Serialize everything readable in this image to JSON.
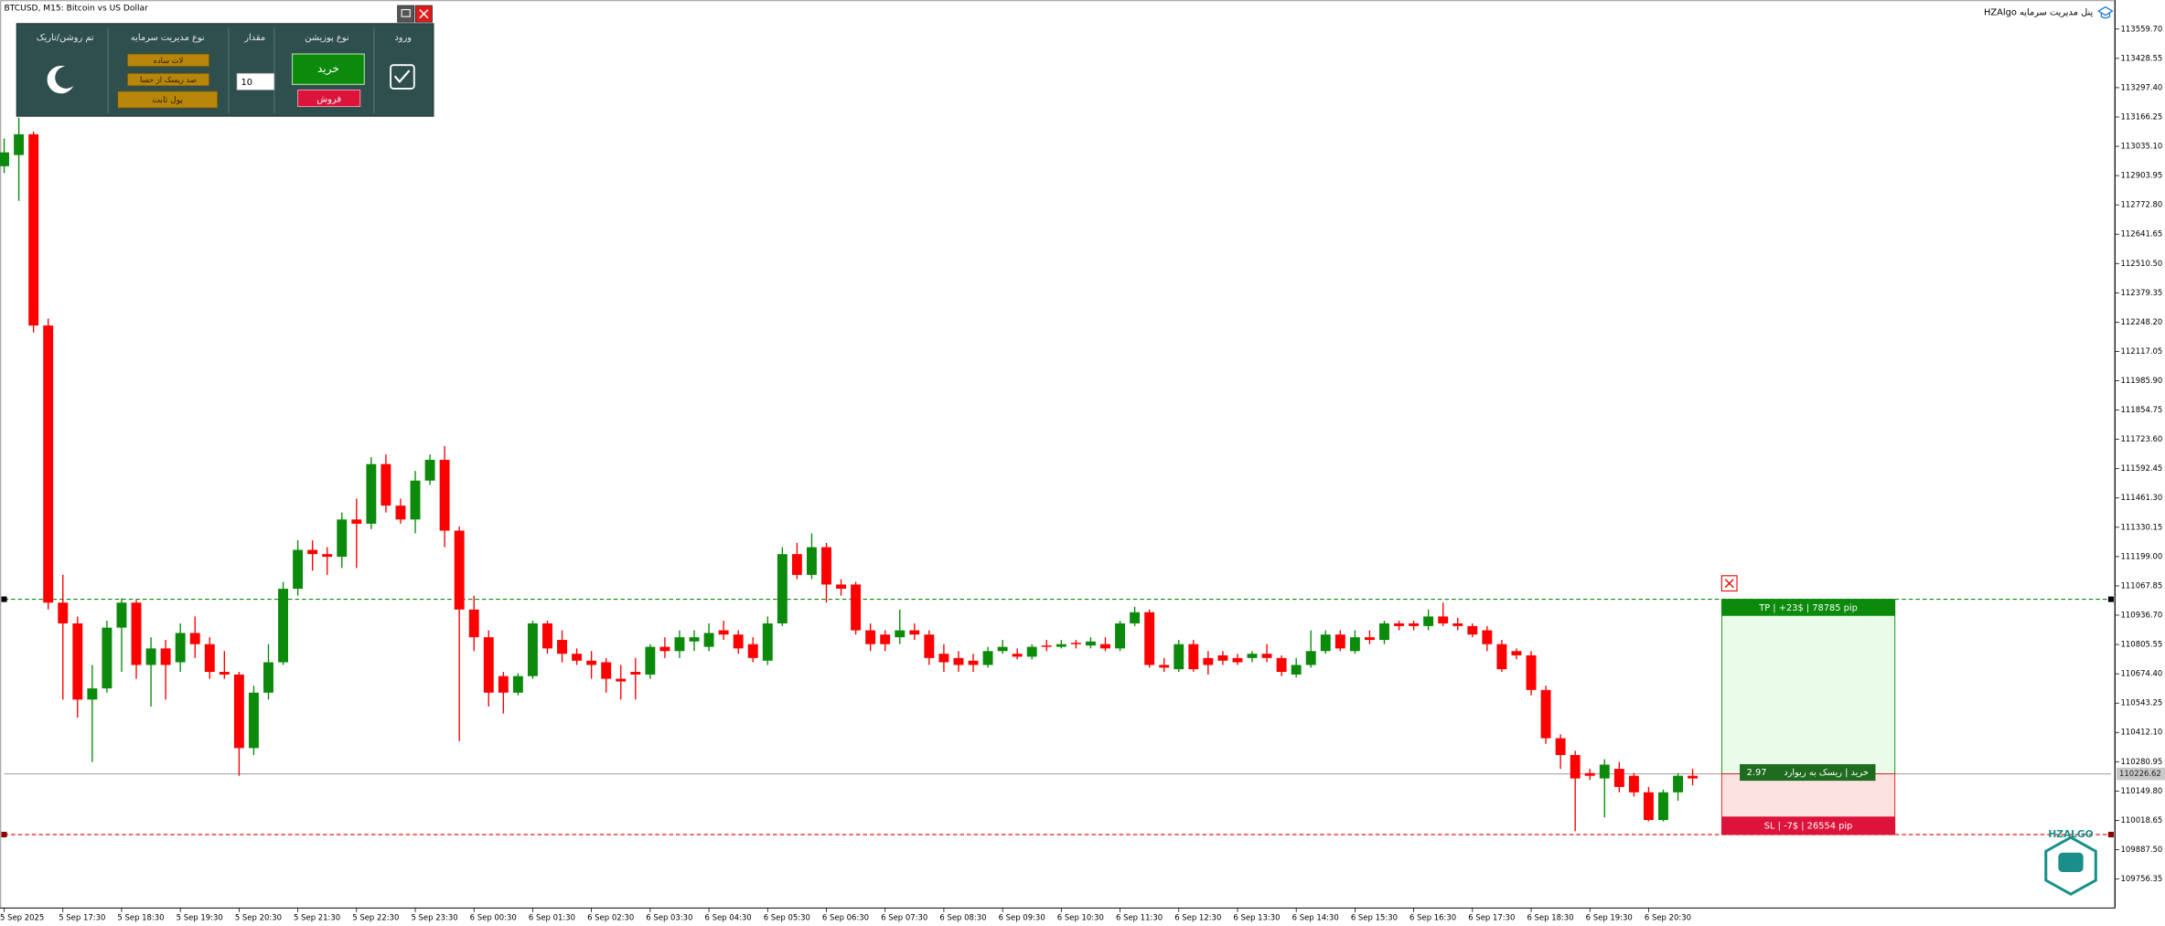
{
  "header": {
    "symbol": "BTCUSD, M15:  Bitcoin vs US Dollar",
    "app_title": "HZAlgo پنل مدیریت سرمایه"
  },
  "panel": {
    "headers": [
      "ورود",
      "نوع پوزیشن",
      "مقدار",
      "نوع مدیریت سرمایه",
      "تم روشن/تاریک"
    ],
    "buy": "خرید",
    "sell": "فروش",
    "amount": 10,
    "money_modes": [
      "لات ساده",
      "صد ریسک از حسا",
      "پول ثابت"
    ]
  },
  "trade_box": {
    "tp_label": "TP  |  +23$  |  78785 pip",
    "sl_label": "SL  |  -7$  |  26554 pip",
    "rr": 2.97,
    "rr_text": "خرید | ریسک به ریوارد"
  },
  "logo": "HZALGO",
  "chart_data": {
    "type": "candlestick",
    "categories": [
      "5 Sep 2025",
      null,
      null,
      null,
      "5 Sep 17:30",
      null,
      null,
      null,
      "5 Sep 18:30",
      null,
      null,
      null,
      "5 Sep 19:30",
      null,
      null,
      null,
      "5 Sep 20:30",
      null,
      null,
      null,
      "5 Sep 21:30",
      null,
      null,
      null,
      "5 Sep 22:30",
      null,
      null,
      null,
      "5 Sep 23:30",
      null,
      null,
      null,
      "6 Sep 00:30",
      null,
      null,
      null,
      "6 Sep 01:30",
      null,
      null,
      null,
      "6 Sep 02:30",
      null,
      null,
      null,
      "6 Sep 03:30",
      null,
      null,
      null,
      "6 Sep 04:30",
      null,
      null,
      null,
      "6 Sep 05:30",
      null,
      null,
      null,
      "6 Sep 06:30",
      null,
      null,
      null,
      "6 Sep 07:30",
      null,
      null,
      null,
      "6 Sep 08:30",
      null,
      null,
      null,
      "6 Sep 09:30",
      null,
      null,
      null,
      "6 Sep 10:30",
      null,
      null,
      null,
      "6 Sep 11:30",
      null,
      null,
      null,
      "6 Sep 12:30",
      null,
      null,
      null,
      "6 Sep 13:30",
      null,
      null,
      null,
      "6 Sep 14:30",
      null,
      null,
      null,
      "6 Sep 15:30",
      null,
      null,
      null,
      "6 Sep 16:30",
      null,
      null,
      null,
      "6 Sep 17:30",
      null,
      null,
      null,
      "6 Sep 18:30",
      null,
      null,
      null,
      "6 Sep 19:30",
      null,
      null,
      null,
      "6 Sep 20:30",
      null,
      null,
      null
    ],
    "open": [
      112946,
      112996,
      113089,
      112233,
      110993,
      110900,
      110559,
      110609,
      110881,
      110993,
      110714,
      110788,
      110726,
      110857,
      110807,
      110683,
      110671,
      110342,
      110590,
      110726,
      111055,
      111229,
      111210,
      111198,
      111365,
      111346,
      111613,
      111427,
      111365,
      111539,
      111632,
      111315,
      110962,
      110838,
      110664,
      110590,
      110664,
      110900,
      110826,
      110764,
      110733,
      110726,
      110652,
      110683,
      110671,
      110795,
      110776,
      110819,
      110795,
      110869,
      110850,
      110807,
      110733,
      110900,
      111210,
      111117,
      111241,
      111074,
      111074,
      110869,
      110850,
      110838,
      110869,
      110850,
      110764,
      110745,
      110733,
      110714,
      110776,
      110764,
      110751,
      110801,
      110795,
      110813,
      110801,
      110807,
      110788,
      110900,
      110950,
      110714,
      110695,
      110807,
      110745,
      110757,
      110745,
      110745,
      110764,
      110745,
      110671,
      110714,
      110776,
      110850,
      110776,
      110838,
      110826,
      110900,
      110900,
      110888,
      110931,
      110900,
      110888,
      110869,
      110807,
      110776,
      110757,
      110602,
      110386,
      110311,
      110230,
      110206,
      110249,
      110218,
      110144,
      110020,
      110144,
      110218
    ],
    "high": [
      113070,
      113163,
      113101,
      112264,
      111117,
      110931,
      110714,
      110912,
      111012,
      111005,
      110838,
      110826,
      110900,
      110931,
      110838,
      110776,
      110683,
      110621,
      110807,
      111086,
      111272,
      111272,
      111241,
      111396,
      111458,
      111644,
      111656,
      111458,
      111582,
      111656,
      111694,
      111334,
      111024,
      110869,
      110683,
      110677,
      110912,
      110912,
      110869,
      110788,
      110776,
      110745,
      110714,
      110745,
      110807,
      110838,
      110869,
      110869,
      110900,
      110912,
      110869,
      110838,
      110931,
      111241,
      111260,
      111303,
      111260,
      111098,
      111086,
      110900,
      110869,
      110962,
      110900,
      110869,
      110807,
      110776,
      110764,
      110795,
      110826,
      110788,
      110807,
      110826,
      110826,
      110826,
      110838,
      110838,
      110912,
      110974,
      110962,
      110745,
      110826,
      110826,
      110776,
      110776,
      110764,
      110776,
      110807,
      110757,
      110745,
      110869,
      110869,
      110869,
      110869,
      110869,
      110912,
      110912,
      110912,
      110962,
      110993,
      110925,
      110900,
      110888,
      110826,
      110788,
      110776,
      110621,
      110404,
      110330,
      110249,
      110292,
      110280,
      110230,
      110168,
      110156,
      110230,
      110249
    ],
    "low": [
      112915,
      112791,
      112202,
      110962,
      110559,
      110478,
      110280,
      110590,
      110683,
      110652,
      110528,
      110559,
      110683,
      110745,
      110652,
      110652,
      110218,
      110311,
      110559,
      110714,
      111024,
      111136,
      111117,
      111148,
      111148,
      111322,
      111396,
      111346,
      111303,
      111520,
      111241,
      110373,
      110776,
      110528,
      110497,
      110578,
      110652,
      110764,
      110726,
      110714,
      110652,
      110590,
      110559,
      110559,
      110652,
      110745,
      110745,
      110776,
      110776,
      110826,
      110764,
      110726,
      110714,
      110888,
      111098,
      111098,
      110993,
      111024,
      110850,
      110776,
      110776,
      110807,
      110826,
      110714,
      110683,
      110683,
      110683,
      110702,
      110764,
      110739,
      110739,
      110776,
      110788,
      110788,
      110788,
      110776,
      110776,
      110888,
      110702,
      110683,
      110683,
      110683,
      110671,
      110714,
      110714,
      110726,
      110726,
      110664,
      110658,
      110702,
      110764,
      110776,
      110764,
      110807,
      110807,
      110869,
      110869,
      110869,
      110888,
      110869,
      110838,
      110776,
      110683,
      110739,
      110578,
      110361,
      110249,
      109970,
      110199,
      110032,
      110144,
      110125,
      110014,
      110014,
      110106,
      110175
    ],
    "close": [
      113008,
      113089,
      112233,
      110993,
      110900,
      110559,
      110609,
      110881,
      110993,
      110714,
      110788,
      110714,
      110857,
      110807,
      110683,
      110671,
      110342,
      110590,
      110726,
      111055,
      111229,
      111210,
      111198,
      111365,
      111346,
      111613,
      111427,
      111365,
      111539,
      111632,
      111315,
      110962,
      110838,
      110590,
      110590,
      110664,
      110900,
      110788,
      110764,
      110733,
      110714,
      110652,
      110640,
      110671,
      110795,
      110776,
      110838,
      110838,
      110857,
      110850,
      110788,
      110745,
      110900,
      111210,
      111117,
      111241,
      111074,
      111055,
      110869,
      110807,
      110807,
      110869,
      110850,
      110745,
      110726,
      110714,
      110714,
      110776,
      110795,
      110751,
      110795,
      110795,
      110807,
      110807,
      110819,
      110788,
      110900,
      110950,
      110714,
      110702,
      110807,
      110695,
      110714,
      110733,
      110726,
      110764,
      110745,
      110683,
      110714,
      110776,
      110850,
      110788,
      110838,
      110826,
      110900,
      110888,
      110888,
      110931,
      110900,
      110888,
      110850,
      110807,
      110695,
      110757,
      110602,
      110386,
      110311,
      110206,
      110218,
      110268,
      110168,
      110144,
      110020,
      110144,
      110218,
      110206
    ],
    "up_color": "#0b8a0b",
    "down_color": "#ff0000",
    "ylim": [
      109626.3,
      113689.8
    ],
    "yticks": [
      {
        "value": 113559.7,
        "label": "113559.70"
      },
      {
        "value": 113428.55,
        "label": "113428.55"
      },
      {
        "value": 113297.4,
        "label": "113297.40"
      },
      {
        "value": 113166.25,
        "label": "113166.25"
      },
      {
        "value": 113035.1,
        "label": "113035.10"
      },
      {
        "value": 112903.95,
        "label": "112903.95"
      },
      {
        "value": 112772.8,
        "label": "112772.80"
      },
      {
        "value": 112641.65,
        "label": "112641.65"
      },
      {
        "value": 112510.5,
        "label": "112510.50"
      },
      {
        "value": 112379.35,
        "label": "112379.35"
      },
      {
        "value": 112248.2,
        "label": "112248.20"
      },
      {
        "value": 112117.05,
        "label": "112117.05"
      },
      {
        "value": 111985.9,
        "label": "111985.90"
      },
      {
        "value": 111854.75,
        "label": "111854.75"
      },
      {
        "value": 111723.6,
        "label": "111723.60"
      },
      {
        "value": 111592.45,
        "label": "111592.45"
      },
      {
        "value": 111461.3,
        "label": "111461.30"
      },
      {
        "value": 111330.15,
        "label": "111330.15"
      },
      {
        "value": 111199,
        "label": "111199.00"
      },
      {
        "value": 111067.85,
        "label": "111067.85"
      },
      {
        "value": 110936.7,
        "label": "110936.70"
      },
      {
        "value": 110805.55,
        "label": "110805.55"
      },
      {
        "value": 110674.4,
        "label": "110674.40"
      },
      {
        "value": 110543.25,
        "label": "110543.25"
      },
      {
        "value": 110412.1,
        "label": "110412.10"
      },
      {
        "value": 110280.95,
        "label": "110280.95"
      },
      {
        "value": 110149.8,
        "label": "110149.80"
      },
      {
        "value": 110018.65,
        "label": "110018.65"
      },
      {
        "value": 109887.5,
        "label": "109887.50"
      },
      {
        "value": 109756.35,
        "label": "109756.35"
      }
    ],
    "bid": 110226.62,
    "tp_level": 111008,
    "sl_level": 109955,
    "grid": false
  }
}
